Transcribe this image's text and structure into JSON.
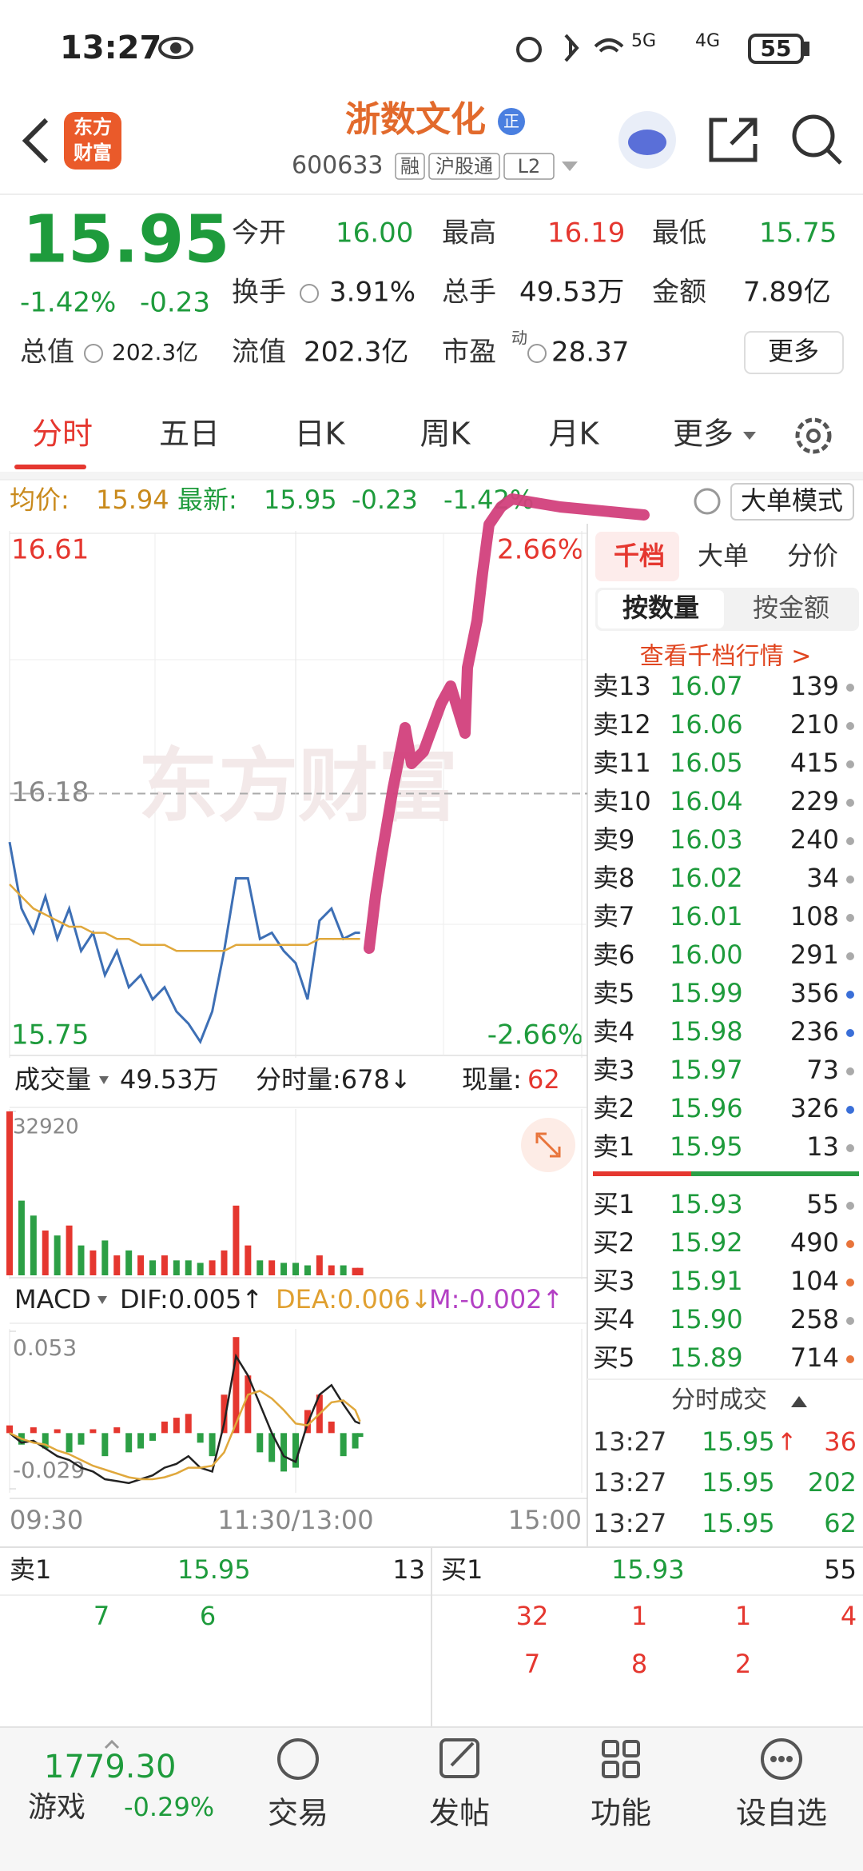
{
  "status_bar": {
    "time": "13:27",
    "net1": "5G",
    "net2": "4G",
    "battery": "55"
  },
  "header": {
    "logo": [
      "东方",
      "财富"
    ],
    "title": "浙数文化",
    "badge": "正",
    "code": "600633",
    "tags": [
      "融",
      "沪股通",
      "L2"
    ]
  },
  "quote": {
    "price": "15.95",
    "change_pct": "-1.42%",
    "change": "-0.23",
    "fields": [
      {
        "label": "今开",
        "value": "16.00"
      },
      {
        "label": "最高",
        "value": "16.19"
      },
      {
        "label": "最低",
        "value": "15.75"
      },
      {
        "label": "换手",
        "value": "3.91%"
      },
      {
        "label": "总手",
        "value": "49.53万"
      },
      {
        "label": "金额",
        "value": "7.89亿"
      },
      {
        "label": "总值",
        "value": "202.3亿"
      },
      {
        "label": "流值",
        "value": "202.3亿"
      },
      {
        "label": "市盈",
        "value": "28.37",
        "sup": "动"
      }
    ],
    "more": "更多"
  },
  "tabs": [
    "分时",
    "五日",
    "日K",
    "周K",
    "月K",
    "更多"
  ],
  "info_line": {
    "avg_label": "均价:",
    "avg": "15.94",
    "last_label": "最新:",
    "last": "15.95",
    "change": "-0.23",
    "pct": "-1.42%",
    "mode": "大单模式"
  },
  "watermark": "东方财富",
  "chart_data": [
    {
      "type": "line",
      "x": [
        0,
        5,
        10,
        15,
        20,
        25,
        30,
        35,
        40,
        45,
        50,
        55,
        60,
        65,
        70,
        75,
        80,
        85,
        90,
        95,
        100,
        105,
        110,
        115,
        120,
        125,
        130,
        135,
        140,
        145,
        147
      ],
      "xlim": [
        0,
        240
      ],
      "ylim": [
        15.75,
        16.61
      ],
      "yticks": [
        16.61,
        16.18,
        15.75
      ],
      "y2lim": [
        -2.66,
        2.66
      ],
      "y2ticks": [
        {
          "value": 2.66,
          "label": "2.66%"
        },
        {
          "value": -2.66,
          "label": "-2.66%"
        }
      ],
      "series": [
        {
          "color": "#3d6fb5",
          "values": [
            16.1,
            15.99,
            15.95,
            16.01,
            15.94,
            15.99,
            15.92,
            15.95,
            15.88,
            15.92,
            15.86,
            15.88,
            15.84,
            15.86,
            15.82,
            15.8,
            15.77,
            15.82,
            15.92,
            16.04,
            16.04,
            15.94,
            15.95,
            15.92,
            15.9,
            15.84,
            15.97,
            15.99,
            15.94,
            15.95,
            15.95
          ]
        },
        {
          "color": "#e0a83c",
          "values": [
            16.03,
            16.01,
            15.99,
            15.98,
            15.97,
            15.96,
            15.96,
            15.95,
            15.95,
            15.94,
            15.94,
            15.93,
            15.93,
            15.93,
            15.92,
            15.92,
            15.92,
            15.92,
            15.92,
            15.93,
            15.93,
            15.93,
            15.93,
            15.93,
            15.93,
            15.93,
            15.94,
            15.94,
            15.94,
            15.94,
            15.94
          ]
        }
      ]
    },
    {
      "type": "bar",
      "header": {
        "name": "成交量",
        "total": "49.53万",
        "minute": "分时量:678↓",
        "now_label": "现量:",
        "now": "62"
      },
      "ylim": [
        0,
        32920
      ],
      "yticks": [
        32920
      ],
      "up_color": "#e5372f",
      "down_color": "#2c9f45",
      "values": [
        32920,
        15000,
        12000,
        9000,
        8000,
        10000,
        6000,
        5000,
        7000,
        4000,
        5000,
        4000,
        3000,
        4000,
        3000,
        3000,
        2500,
        3000,
        5000,
        14000,
        6000,
        3000,
        3000,
        2500,
        2500,
        2000,
        4000,
        2000,
        2000,
        1500,
        1500
      ]
    },
    {
      "type": "bar",
      "header": {
        "name": "MACD",
        "dif": "DIF:0.005↑",
        "dea": "DEA:0.006↓",
        "m": "M:-0.002↑"
      },
      "ylim": [
        -0.029,
        0.053
      ],
      "yticks": [
        0.053,
        -0.029
      ],
      "xticks": [
        {
          "value": 0,
          "label": "09:30"
        },
        {
          "value": 120,
          "label": "11:30/13:00"
        },
        {
          "value": 240,
          "label": "15:00"
        }
      ],
      "up_color": "#e5372f",
      "down_color": "#2c9f45",
      "values": [
        0.004,
        -0.006,
        0.003,
        -0.008,
        0.002,
        -0.01,
        -0.006,
        0.002,
        -0.012,
        0.003,
        -0.01,
        -0.008,
        -0.004,
        0.006,
        0.008,
        0.01,
        -0.005,
        -0.012,
        0.02,
        0.05,
        0.03,
        -0.01,
        -0.015,
        -0.02,
        -0.018,
        0.012,
        0.02,
        0.006,
        -0.012,
        -0.008,
        -0.002
      ],
      "series": [
        {
          "color": "#222222",
          "values": [
            0.0,
            -0.005,
            -0.004,
            -0.008,
            -0.012,
            -0.014,
            -0.018,
            -0.02,
            -0.024,
            -0.025,
            -0.026,
            -0.024,
            -0.022,
            -0.018,
            -0.016,
            -0.012,
            -0.018,
            -0.02,
            0.005,
            0.04,
            0.03,
            0.015,
            0.0,
            -0.012,
            -0.015,
            0.005,
            0.02,
            0.025,
            0.015,
            0.006,
            0.005
          ]
        },
        {
          "color": "#e0a83c",
          "values": [
            0.0,
            -0.003,
            -0.005,
            -0.006,
            -0.009,
            -0.011,
            -0.014,
            -0.017,
            -0.019,
            -0.021,
            -0.023,
            -0.024,
            -0.024,
            -0.023,
            -0.021,
            -0.018,
            -0.018,
            -0.017,
            -0.01,
            0.005,
            0.02,
            0.022,
            0.018,
            0.012,
            0.005,
            0.004,
            0.01,
            0.016,
            0.017,
            0.012,
            0.006
          ]
        }
      ]
    }
  ],
  "order_book": {
    "tabs": [
      "千档",
      "大单",
      "分价"
    ],
    "buttons": [
      "按数量",
      "按金额"
    ],
    "link": "查看千档行情 >",
    "asks": [
      {
        "label": "卖13",
        "price": "16.07",
        "qty": "139",
        "dot": "#aaaaaa"
      },
      {
        "label": "卖12",
        "price": "16.06",
        "qty": "210",
        "dot": "#aaaaaa"
      },
      {
        "label": "卖11",
        "price": "16.05",
        "qty": "415",
        "dot": "#aaaaaa"
      },
      {
        "label": "卖10",
        "price": "16.04",
        "qty": "229",
        "dot": "#aaaaaa"
      },
      {
        "label": "卖9",
        "price": "16.03",
        "qty": "240",
        "dot": "#aaaaaa"
      },
      {
        "label": "卖8",
        "price": "16.02",
        "qty": "34",
        "dot": "#aaaaaa"
      },
      {
        "label": "卖7",
        "price": "16.01",
        "qty": "108",
        "dot": "#aaaaaa"
      },
      {
        "label": "卖6",
        "price": "16.00",
        "qty": "291",
        "dot": "#aaaaaa"
      },
      {
        "label": "卖5",
        "price": "15.99",
        "qty": "356",
        "dot": "#3a6fd8"
      },
      {
        "label": "卖4",
        "price": "15.98",
        "qty": "236",
        "dot": "#3a6fd8"
      },
      {
        "label": "卖3",
        "price": "15.97",
        "qty": "73",
        "dot": "#aaaaaa"
      },
      {
        "label": "卖2",
        "price": "15.96",
        "qty": "326",
        "dot": "#3a6fd8"
      },
      {
        "label": "卖1",
        "price": "15.95",
        "qty": "13",
        "dot": "#aaaaaa"
      }
    ],
    "bids": [
      {
        "label": "买1",
        "price": "15.93",
        "qty": "55",
        "dot": "#aaaaaa"
      },
      {
        "label": "买2",
        "price": "15.92",
        "qty": "490",
        "dot": "#e8743b"
      },
      {
        "label": "买3",
        "price": "15.91",
        "qty": "104",
        "dot": "#e8743b"
      },
      {
        "label": "买4",
        "price": "15.90",
        "qty": "258",
        "dot": "#aaaaaa"
      },
      {
        "label": "买5",
        "price": "15.89",
        "qty": "714",
        "dot": "#e8743b"
      }
    ],
    "trades_title": "分时成交",
    "trades": [
      {
        "time": "13:27",
        "price": "15.95",
        "arrow": "↑",
        "qty": "36",
        "color": "#e5372f"
      },
      {
        "time": "13:27",
        "price": "15.95",
        "qty": "202",
        "color": "#1e9b3c"
      },
      {
        "time": "13:27",
        "price": "15.95",
        "qty": "62",
        "color": "#1e9b3c"
      }
    ]
  },
  "queue": {
    "left": {
      "label": "卖1",
      "price": "15.95",
      "qty": "13",
      "items": [
        "7",
        "6"
      ]
    },
    "right": {
      "label": "买1",
      "price": "15.93",
      "qty": "55",
      "items": [
        "32",
        "1",
        "1",
        "4",
        "7",
        "8",
        "2"
      ]
    }
  },
  "nav": {
    "index": "1779.30",
    "index_change": "-0.29%",
    "game": "游戏",
    "items": [
      "交易",
      "发帖",
      "功能",
      "设自选"
    ]
  }
}
